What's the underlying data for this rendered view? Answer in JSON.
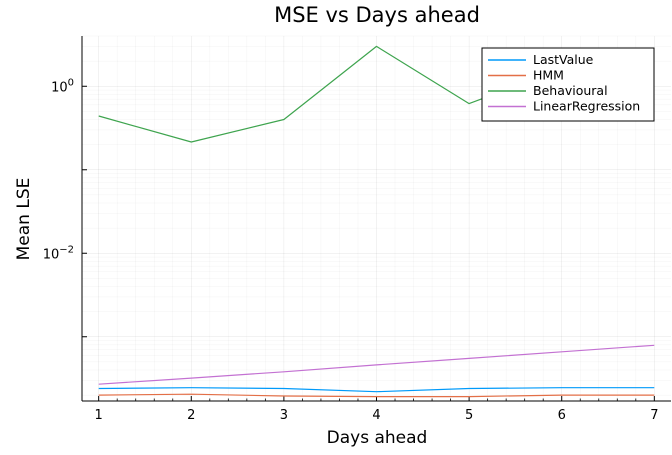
{
  "chart_data": {
    "type": "line",
    "title": "MSE vs Days ahead",
    "xlabel": "Days ahead",
    "ylabel": "Mean LSE",
    "x": [
      1,
      2,
      3,
      4,
      5,
      6,
      7
    ],
    "xlim": [
      0.82,
      7.18
    ],
    "ylim": [
      0.00017,
      4.0
    ],
    "yscale": "log",
    "x_ticks": [
      "1",
      "2",
      "3",
      "4",
      "5",
      "6",
      "7"
    ],
    "y_ticks": [
      {
        "value": 1,
        "base": "10",
        "exp": "0"
      },
      {
        "value": 0.01,
        "base": "10",
        "exp": "−2"
      }
    ],
    "grid": true,
    "legend_position": "top-right",
    "series": [
      {
        "name": "LastValue",
        "color": "#009AFA",
        "values": [
          0.00024,
          0.000245,
          0.00024,
          0.00022,
          0.00024,
          0.000245,
          0.000245
        ]
      },
      {
        "name": "HMM",
        "color": "#E36F47",
        "values": [
          0.0002,
          0.000205,
          0.000195,
          0.000192,
          0.000192,
          0.0002,
          0.0002
        ]
      },
      {
        "name": "Behavioural",
        "color": "#3EA44E",
        "values": [
          0.44,
          0.215,
          0.4,
          3.0,
          0.62,
          1.6,
          1.8
        ]
      },
      {
        "name": "LinearRegression",
        "color": "#C371D2",
        "values": [
          0.00027,
          0.00032,
          0.00038,
          0.00046,
          0.00055,
          0.00066,
          0.00079
        ]
      }
    ]
  }
}
